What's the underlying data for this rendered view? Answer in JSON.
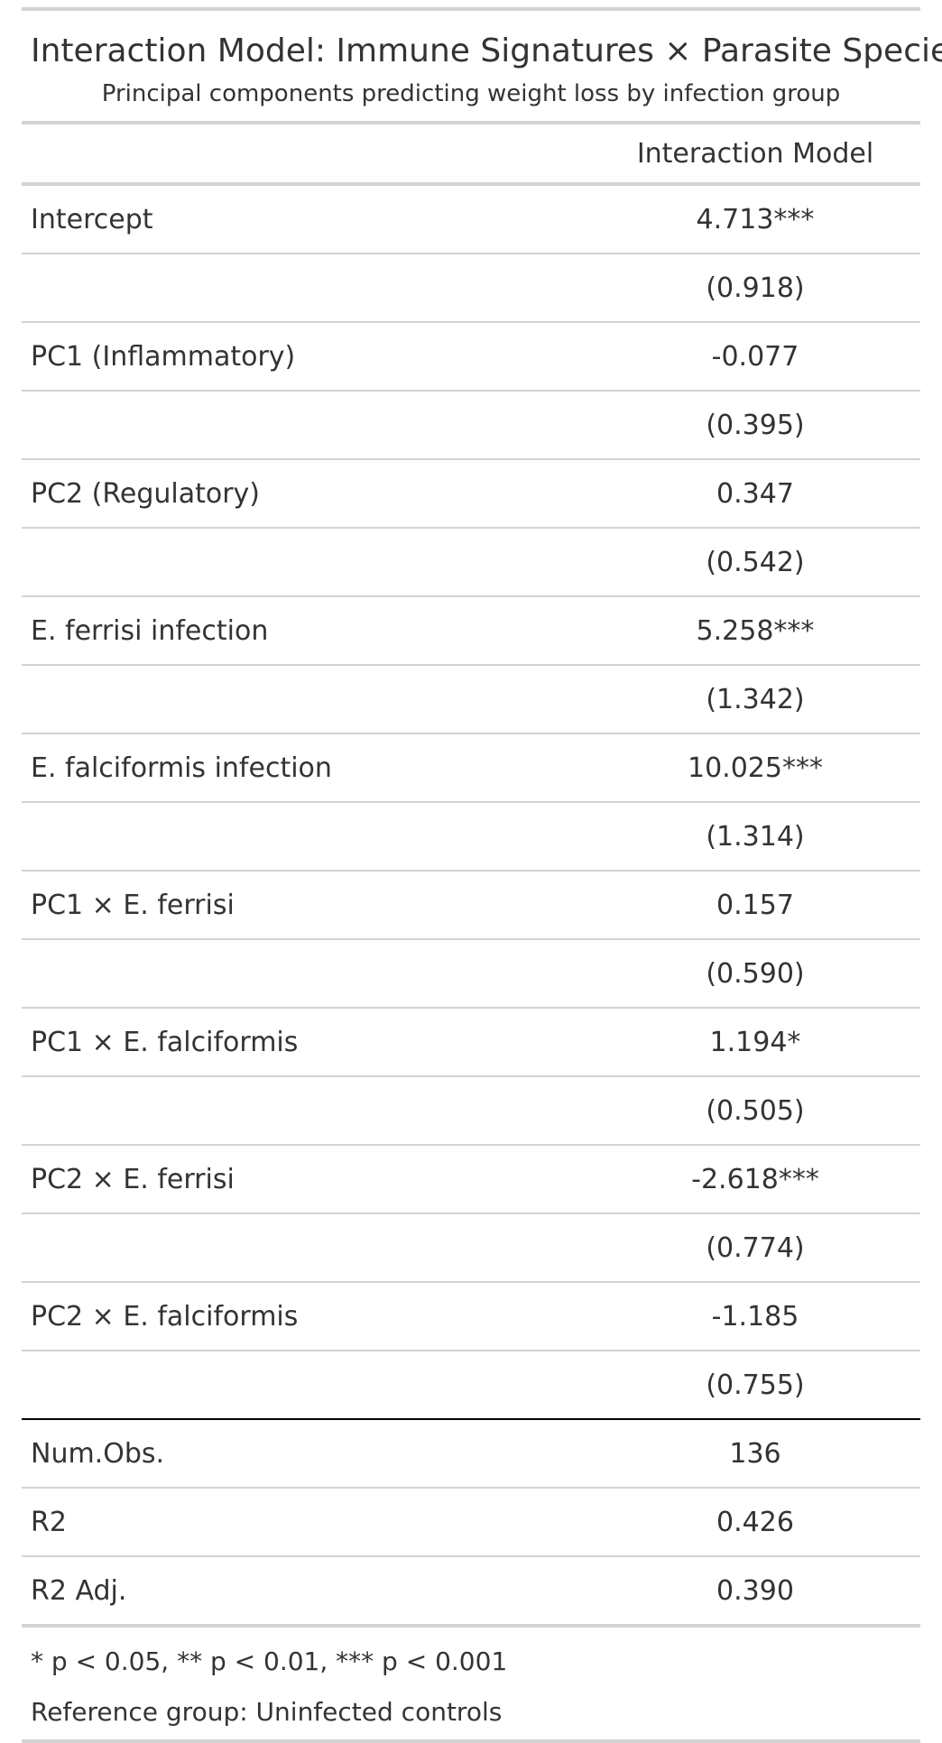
{
  "table": {
    "title": "Interaction Model: Immune Signatures × Parasite Species",
    "subtitle": "Principal components predicting weight loss by infection group",
    "column_header": "Interaction Model",
    "coefficients": [
      {
        "term": "Intercept",
        "estimate": "4.713***",
        "se": "(0.918)"
      },
      {
        "term": "PC1 (Inflammatory)",
        "estimate": "-0.077",
        "se": "(0.395)"
      },
      {
        "term": "PC2 (Regulatory)",
        "estimate": "0.347",
        "se": "(0.542)"
      },
      {
        "term": "E. ferrisi infection",
        "estimate": "5.258***",
        "se": "(1.342)"
      },
      {
        "term": "E. falciformis infection",
        "estimate": "10.025***",
        "se": "(1.314)"
      },
      {
        "term": "PC1 × E. ferrisi",
        "estimate": "0.157",
        "se": "(0.590)"
      },
      {
        "term": "PC1 × E. falciformis",
        "estimate": "1.194*",
        "se": "(0.505)"
      },
      {
        "term": "PC2 × E. ferrisi",
        "estimate": "-2.618***",
        "se": "(0.774)"
      },
      {
        "term": "PC2 × E. falciformis",
        "estimate": "-1.185",
        "se": "(0.755)"
      }
    ],
    "goodness_of_fit": [
      {
        "label": "Num.Obs.",
        "value": "136"
      },
      {
        "label": "R2",
        "value": "0.426"
      },
      {
        "label": "R2 Adj.",
        "value": "0.390"
      }
    ],
    "notes": [
      "* p < 0.05, ** p < 0.01, *** p < 0.001",
      "Reference group: Uninfected controls"
    ]
  }
}
